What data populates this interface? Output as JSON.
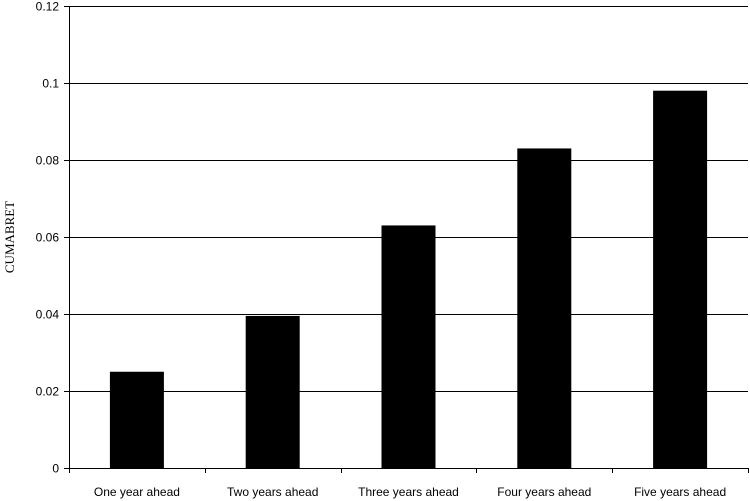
{
  "chart_data": {
    "type": "bar",
    "title": "",
    "xlabel": "",
    "ylabel": "CUMABRET",
    "categories": [
      "One year ahead",
      "Two years ahead",
      "Three years ahead",
      "Four years ahead",
      "Five years ahead"
    ],
    "values": [
      0.025,
      0.0395,
      0.063,
      0.083,
      0.098
    ],
    "ylim": [
      0,
      0.12
    ],
    "yticks": [
      0,
      0.02,
      0.04,
      0.06,
      0.08,
      0.1,
      0.12
    ],
    "ytick_labels": [
      "0",
      "0.02",
      "0.04",
      "0.06",
      "0.08",
      "0.1",
      "0.12"
    ],
    "grid": true,
    "legend": "none",
    "colors": {
      "bar": "#000000",
      "grid": "#000000",
      "background": "#ffffff"
    }
  }
}
